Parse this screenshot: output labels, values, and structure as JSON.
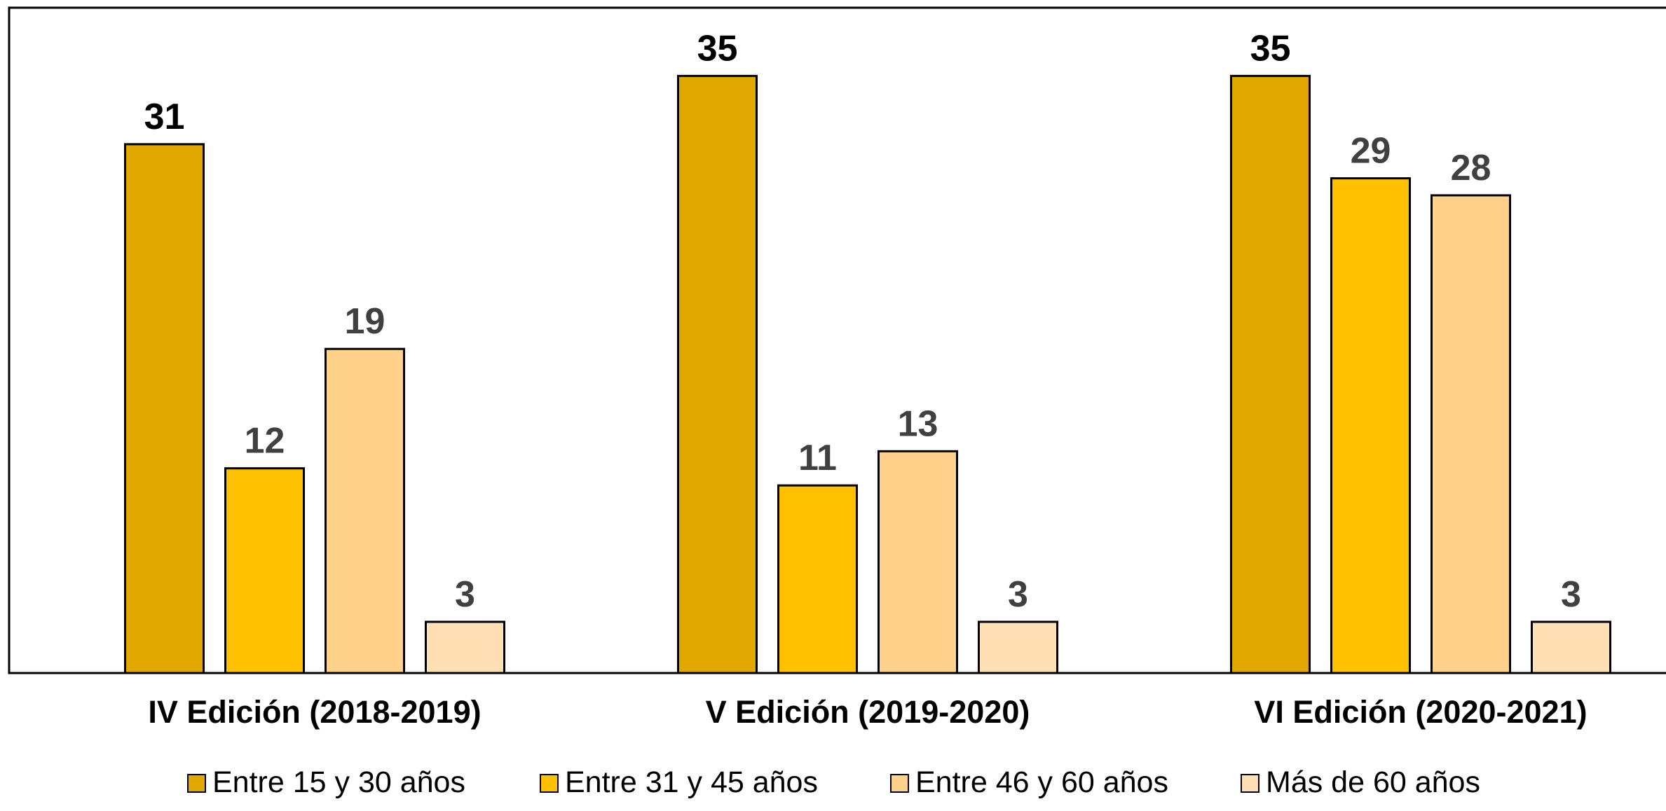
{
  "chart_data": {
    "type": "bar",
    "categories": [
      "IV Edición (2018-2019)",
      "V Edición (2019-2020)",
      "VI Edición (2020-2021)"
    ],
    "series": [
      {
        "name": "Entre 15 y 30 años",
        "values": [
          31,
          35,
          35
        ],
        "color": "#E0A800"
      },
      {
        "name": "Entre 31 y 45 años",
        "values": [
          12,
          11,
          29
        ],
        "color": "#FFC000"
      },
      {
        "name": "Entre 46 y 60 años",
        "values": [
          19,
          13,
          28
        ],
        "color": "#FFD18A"
      },
      {
        "name": "Más de 60 años",
        "values": [
          3,
          3,
          3
        ],
        "color": "#FFDFB3"
      }
    ],
    "ylim": [
      0,
      39
    ],
    "grid": false,
    "legend_position": "bottom",
    "data_label_colors": [
      "#000000",
      "#404040",
      "#404040",
      "#404040"
    ],
    "bar_border_color": "#000000"
  }
}
